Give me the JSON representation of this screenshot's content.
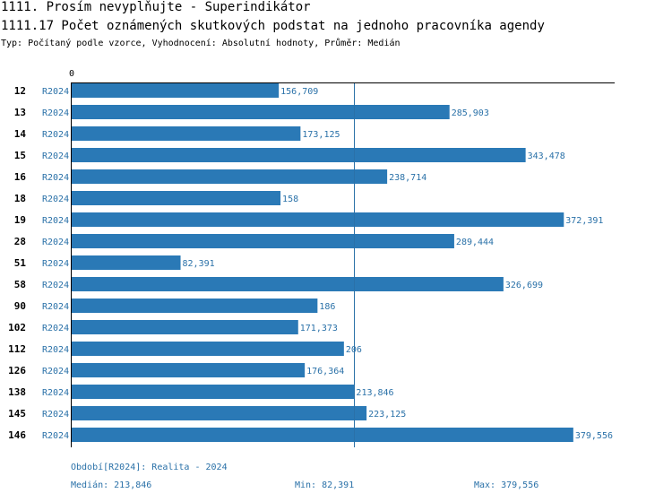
{
  "header": {
    "title": "1111. Prosím nevyplňujte - Superindikátor",
    "indicator": "1111.17 Počet oznámených skutkových podstat na jednoho pracovníka agendy",
    "subtitle": "Typ: Počítaný podle vzorce, Vyhodnocení: Absolutní hodnoty, Průměr: Medián"
  },
  "colors": {
    "bar": "#2a79b6",
    "label": "#2a71a8",
    "axis": "#000000",
    "median_line": "#2a71a8"
  },
  "chart_data": {
    "type": "bar",
    "orientation": "horizontal",
    "x_axis_zero_label": "0",
    "xlim": [
      0,
      400
    ],
    "median": 213.846,
    "series_name": "R2024",
    "categories": [
      "12",
      "13",
      "14",
      "15",
      "16",
      "18",
      "19",
      "28",
      "51",
      "58",
      "90",
      "102",
      "112",
      "126",
      "138",
      "145",
      "146"
    ],
    "values": [
      156.709,
      285.903,
      173.125,
      343.478,
      238.714,
      158,
      372.391,
      289.444,
      82.391,
      326.699,
      186,
      171.373,
      206,
      176.364,
      213.846,
      223.125,
      379.556
    ],
    "value_labels": [
      "156,709",
      "285,903",
      "173,125",
      "343,478",
      "238,714",
      "158",
      "372,391",
      "289,444",
      "82,391",
      "326,699",
      "186",
      "171,373",
      "206",
      "176,364",
      "213,846",
      "223,125",
      "379,556"
    ]
  },
  "footer": {
    "period": "Období[R2024]: Realita - 2024",
    "median": "Medián: 213,846",
    "min": "Min: 82,391",
    "max": "Max: 379,556"
  }
}
